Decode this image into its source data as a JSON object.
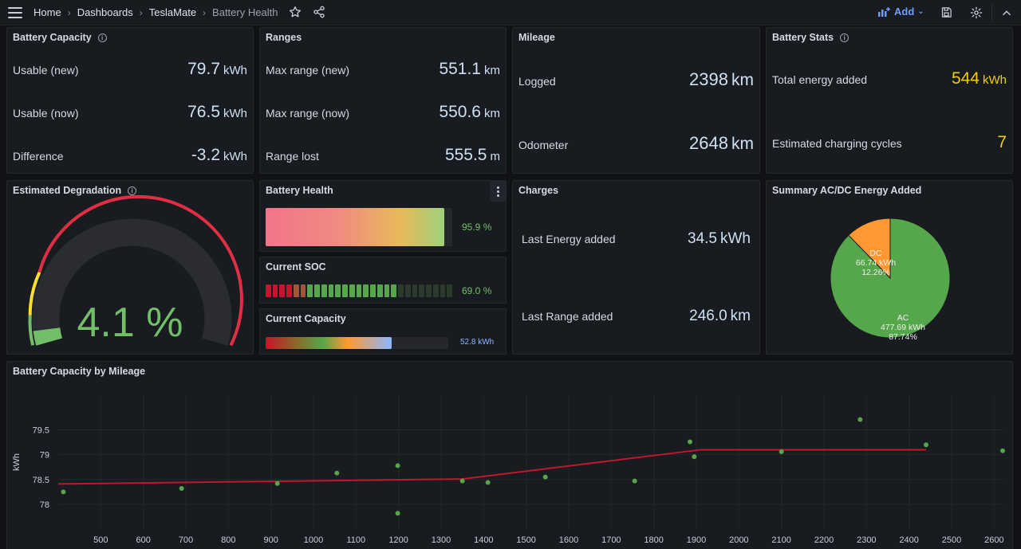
{
  "topbar": {
    "breadcrumbs": [
      "Home",
      "Dashboards",
      "TeslaMate",
      "Battery Health"
    ],
    "add_label": "Add"
  },
  "battery_capacity": {
    "title": "Battery Capacity",
    "rows": [
      {
        "label": "Usable (new)",
        "value": "79.7",
        "unit": "kWh"
      },
      {
        "label": "Usable (now)",
        "value": "76.5",
        "unit": "kWh"
      },
      {
        "label": "Difference",
        "value": "-3.2",
        "unit": "kWh"
      }
    ]
  },
  "ranges": {
    "title": "Ranges",
    "rows": [
      {
        "label": "Max range (new)",
        "value": "551.1",
        "unit": "km"
      },
      {
        "label": "Max range (now)",
        "value": "550.6",
        "unit": "km"
      },
      {
        "label": "Range lost",
        "value": "555.5",
        "unit": "m"
      }
    ]
  },
  "mileage": {
    "title": "Mileage",
    "rows": [
      {
        "label": "Logged",
        "value": "2398",
        "unit": "km"
      },
      {
        "label": "Odometer",
        "value": "2648",
        "unit": "km"
      }
    ]
  },
  "battery_stats": {
    "title": "Battery Stats",
    "rows": [
      {
        "label": "Total energy added",
        "value": "544",
        "unit": "kWh"
      },
      {
        "label": "Estimated charging cycles",
        "value": "7",
        "unit": ""
      }
    ]
  },
  "degradation": {
    "title": "Estimated Degradation",
    "value": "4.1 %",
    "fraction": 0.041
  },
  "battery_health": {
    "title": "Battery Health",
    "value": "95.9 %",
    "fraction": 0.959
  },
  "current_soc": {
    "title": "Current SOC",
    "value": "69.0 %",
    "fraction": 0.69
  },
  "current_capacity": {
    "title": "Current Capacity",
    "value": "52.8 kWh",
    "fraction": 0.69
  },
  "charges": {
    "title": "Charges",
    "rows": [
      {
        "label": "Last Energy added",
        "value": "34.5",
        "unit": "kWh"
      },
      {
        "label": "Last Range added",
        "value": "246.0",
        "unit": "km"
      }
    ]
  },
  "summary_acdc": {
    "title": "Summary AC/DC Energy Added",
    "slices": [
      {
        "name": "AC",
        "energy": "477.69 kWh",
        "percent_label": "87.74%",
        "percent": 87.74,
        "color": "#56a64b"
      },
      {
        "name": "DC",
        "energy": "66.74 kWh",
        "percent_label": "12.26%",
        "percent": 12.26,
        "color": "#ff9830"
      }
    ]
  },
  "mileage_chart": {
    "title": "Battery Capacity by Mileage",
    "chart_data": {
      "type": "scatter",
      "ylabel": "kWh",
      "xlim": [
        400,
        2620
      ],
      "ylim": [
        77.5,
        80.2
      ],
      "x_ticks": [
        500,
        600,
        700,
        800,
        900,
        1000,
        1100,
        1200,
        1300,
        1400,
        1500,
        1600,
        1700,
        1800,
        1900,
        2000,
        2100,
        2200,
        2300,
        2400,
        2500,
        2600
      ],
      "y_ticks": [
        {
          "v": 78,
          "label": "78"
        },
        {
          "v": 78.5,
          "label": "78.5"
        },
        {
          "v": 79,
          "label": "79"
        },
        {
          "v": 79.5,
          "label": "79.5"
        }
      ],
      "points": [
        {
          "x": 412,
          "y": 78.25
        },
        {
          "x": 690,
          "y": 78.32
        },
        {
          "x": 915,
          "y": 78.42
        },
        {
          "x": 1055,
          "y": 78.63
        },
        {
          "x": 1198,
          "y": 78.78
        },
        {
          "x": 1198,
          "y": 77.82
        },
        {
          "x": 1350,
          "y": 78.47
        },
        {
          "x": 1410,
          "y": 78.44
        },
        {
          "x": 1545,
          "y": 78.55
        },
        {
          "x": 1755,
          "y": 78.47
        },
        {
          "x": 1885,
          "y": 79.26
        },
        {
          "x": 1895,
          "y": 78.96
        },
        {
          "x": 2100,
          "y": 79.06
        },
        {
          "x": 2285,
          "y": 79.71
        },
        {
          "x": 2440,
          "y": 79.2
        },
        {
          "x": 2620,
          "y": 79.08
        }
      ],
      "trend": [
        {
          "x": 400,
          "y": 78.41
        },
        {
          "x": 1350,
          "y": 78.51
        },
        {
          "x": 1910,
          "y": 79.1
        },
        {
          "x": 2440,
          "y": 79.1
        }
      ],
      "point_color": "#56a64b",
      "line_color": "#c4162a"
    }
  }
}
